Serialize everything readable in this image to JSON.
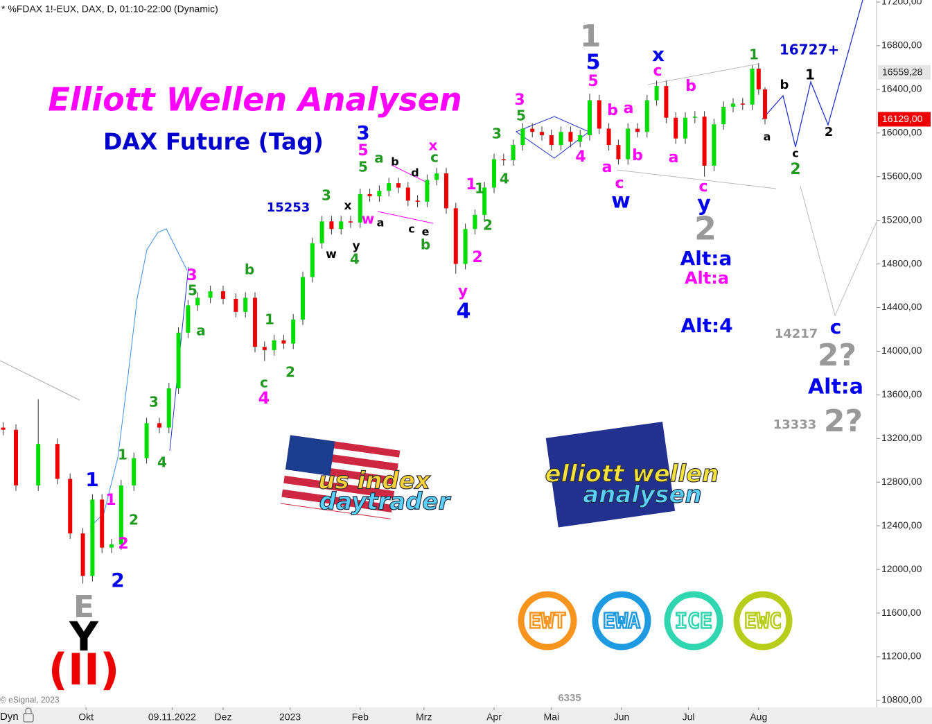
{
  "chart_data": {
    "type": "candlestick",
    "header": "* %FDAX 1!-EUX, DAX, D, 01:10-22:00 (Dynamic)",
    "title": "Elliott Wellen Analysen",
    "subtitle": "DAX Future (Tag)",
    "source": "© eSignal, 2023",
    "footer_number": "6335",
    "x_corner_label": "Dyn",
    "up_color": "#00dd00",
    "down_color": "#ee0000",
    "x": [
      1,
      5,
      12,
      18,
      22,
      26,
      29,
      32,
      35,
      38,
      42,
      46,
      50,
      53,
      56,
      59,
      62,
      66,
      70,
      74,
      77,
      80,
      83,
      86,
      89,
      92,
      95,
      98,
      101,
      104,
      107,
      110,
      113,
      116,
      119,
      122,
      125,
      128,
      131,
      134,
      137,
      140,
      143,
      146,
      149,
      152,
      155,
      158,
      161,
      164,
      167,
      170,
      173,
      176,
      179,
      182,
      185,
      188,
      191,
      194,
      197,
      200,
      203,
      206,
      209,
      212,
      215,
      218,
      221,
      224,
      227,
      230,
      233,
      236,
      238,
      240
    ],
    "open": [
      13300,
      13280,
      12770,
      13150,
      12830,
      12330,
      11940,
      12640,
      12200,
      12230,
      12770,
      13020,
      13340,
      13300,
      13660,
      14170,
      14420,
      14490,
      14550,
      14480,
      14360,
      14490,
      14040,
      14010,
      14100,
      14070,
      14290,
      14680,
      14990,
      15190,
      15120,
      15190,
      15180,
      15440,
      15420,
      15470,
      15540,
      15500,
      15380,
      15370,
      15570,
      15630,
      15310,
      14800,
      15120,
      15250,
      15500,
      15760,
      15750,
      15890,
      16040,
      16010,
      15980,
      15890,
      16010,
      15920,
      15980,
      16300,
      16040,
      15890,
      15760,
      16040,
      16010,
      16300,
      16430,
      16140,
      15950,
      16140,
      16150,
      15700,
      16080,
      16240,
      16270,
      16260,
      16590,
      16400
    ],
    "high": [
      13350,
      13330,
      13560,
      13200,
      12880,
      12380,
      12690,
      12690,
      12280,
      12820,
      13070,
      13390,
      13390,
      13710,
      14220,
      14470,
      14540,
      14600,
      14600,
      14530,
      14540,
      14540,
      14090,
      14150,
      14150,
      14340,
      14730,
      15040,
      15240,
      15240,
      15240,
      15240,
      15490,
      15490,
      15520,
      15590,
      15590,
      15550,
      15430,
      15620,
      15680,
      15680,
      15360,
      15170,
      15300,
      15550,
      15810,
      15810,
      15940,
      16090,
      16090,
      16060,
      16030,
      16060,
      16060,
      16030,
      16360,
      16350,
      16090,
      15940,
      16090,
      16090,
      16350,
      16480,
      16480,
      16190,
      16190,
      16200,
      16200,
      16130,
      16290,
      16320,
      16320,
      16620,
      16640,
      16420
    ],
    "low": [
      13230,
      12720,
      12720,
      12780,
      12280,
      11870,
      11890,
      12150,
      12150,
      12180,
      12720,
      12970,
      13250,
      13250,
      13610,
      14120,
      14370,
      14440,
      14430,
      14310,
      14310,
      13990,
      13910,
      13960,
      14020,
      14020,
      14240,
      14630,
      14940,
      15070,
      15070,
      15130,
      15130,
      15370,
      15370,
      15420,
      15450,
      15330,
      15320,
      15320,
      15520,
      15260,
      14710,
      14750,
      15070,
      15200,
      15450,
      15700,
      15700,
      15840,
      15960,
      15930,
      15840,
      15840,
      15870,
      15870,
      15930,
      15990,
      15840,
      15710,
      15710,
      15960,
      15960,
      16250,
      16090,
      15900,
      15900,
      16090,
      15600,
      15650,
      16030,
      16190,
      16210,
      16210,
      16350,
      16080
    ],
    "close": [
      13280,
      12770,
      13150,
      12830,
      12330,
      11940,
      12640,
      12200,
      12230,
      12770,
      13020,
      13340,
      13300,
      13660,
      14170,
      14420,
      14490,
      14550,
      14480,
      14360,
      14490,
      14040,
      14010,
      14100,
      14070,
      14290,
      14680,
      14990,
      15190,
      15120,
      15190,
      15180,
      15440,
      15420,
      15470,
      15540,
      15500,
      15380,
      15370,
      15570,
      15630,
      15310,
      14800,
      15120,
      15250,
      15500,
      15760,
      15750,
      15890,
      16040,
      16010,
      15980,
      15890,
      16010,
      15920,
      15980,
      16300,
      16040,
      15890,
      15760,
      16040,
      16010,
      16300,
      16430,
      16140,
      15950,
      16140,
      16150,
      15700,
      16080,
      16240,
      16270,
      16260,
      16590,
      16400,
      16129
    ],
    "xlim": [
      0,
      275
    ],
    "xticks": [
      {
        "value": 27,
        "label": "Okt"
      },
      {
        "value": 54,
        "label": "09.11.2022"
      },
      {
        "value": 70,
        "label": "Dez"
      },
      {
        "value": 91,
        "label": "2023"
      },
      {
        "value": 113,
        "label": "Feb"
      },
      {
        "value": 133,
        "label": "Mrz"
      },
      {
        "value": 155,
        "label": "Apr"
      },
      {
        "value": 173,
        "label": "Mai"
      },
      {
        "value": 195,
        "label": "Jun"
      },
      {
        "value": 216,
        "label": "Jul"
      },
      {
        "value": 238,
        "label": "Aug"
      }
    ],
    "ylim": [
      10736,
      17219
    ],
    "yticks": [
      {
        "value": 17200,
        "label": "17200,00"
      },
      {
        "value": 16800,
        "label": "16800,00"
      },
      {
        "value": 16400,
        "label": "16400,00"
      },
      {
        "value": 16000,
        "label": "16000,00"
      },
      {
        "value": 15600,
        "label": "15600,00"
      },
      {
        "value": 15200,
        "label": "15200,00"
      },
      {
        "value": 14800,
        "label": "14800,00"
      },
      {
        "value": 14400,
        "label": "14400,00"
      },
      {
        "value": 14000,
        "label": "14000,00"
      },
      {
        "value": 13600,
        "label": "13600,00"
      },
      {
        "value": 13200,
        "label": "13200,00"
      },
      {
        "value": 12800,
        "label": "12800,00"
      },
      {
        "value": 12400,
        "label": "12400,00"
      },
      {
        "value": 12000,
        "label": "12000,00"
      },
      {
        "value": 11600,
        "label": "11600,00"
      },
      {
        "value": 11200,
        "label": "11200,00"
      },
      {
        "value": 10800,
        "label": "10800,00"
      }
    ],
    "price_labels": [
      {
        "value": 16559.28,
        "label": "16559,28",
        "color": "#e6e6e6"
      },
      {
        "value": 16129,
        "label": "16129,00",
        "color": "#ee0000"
      }
    ],
    "annotations": [
      {
        "text": "E",
        "color": "#999999"
      },
      {
        "text": "Y",
        "color": "#000000"
      },
      {
        "text": "(II)",
        "color": "#ee0000"
      },
      {
        "text": "1",
        "color": "#0000ee"
      },
      {
        "text": "2",
        "color": "#0000ee"
      },
      {
        "text": "1",
        "color": "#ff00ff"
      },
      {
        "text": "2",
        "color": "#ff00ff"
      },
      {
        "text": "1",
        "color": "#1f9a1f"
      },
      {
        "text": "2",
        "color": "#1f9a1f"
      },
      {
        "text": "3",
        "color": "#1f9a1f"
      },
      {
        "text": "4",
        "color": "#1f9a1f"
      },
      {
        "text": "3",
        "color": "#ff00ff"
      },
      {
        "text": "5",
        "color": "#1f9a1f"
      },
      {
        "text": "a",
        "color": "#1f9a1f"
      },
      {
        "text": "b",
        "color": "#1f9a1f"
      },
      {
        "text": "1",
        "color": "#1f9a1f"
      },
      {
        "text": "2",
        "color": "#1f9a1f"
      },
      {
        "text": "c",
        "color": "#1f9a1f"
      },
      {
        "text": "4",
        "color": "#ff00ff"
      },
      {
        "text": "15253",
        "color": "#0000cc"
      },
      {
        "text": "3",
        "color": "#1f9a1f"
      },
      {
        "text": "x",
        "color": "#000000"
      },
      {
        "text": "w",
        "color": "#000000"
      },
      {
        "text": "y",
        "color": "#000000"
      },
      {
        "text": "4",
        "color": "#1f9a1f"
      },
      {
        "text": "3",
        "color": "#0000ee"
      },
      {
        "text": "5",
        "color": "#ff00ff"
      },
      {
        "text": "5",
        "color": "#1f9a1f"
      },
      {
        "text": "a",
        "color": "#1f9a1f"
      },
      {
        "text": "w",
        "color": "#ff00ff"
      },
      {
        "text": "a",
        "color": "#000000"
      },
      {
        "text": "b",
        "color": "#000000"
      },
      {
        "text": "d",
        "color": "#000000"
      },
      {
        "text": "c",
        "color": "#000000"
      },
      {
        "text": "e",
        "color": "#000000"
      },
      {
        "text": "b",
        "color": "#1f9a1f"
      },
      {
        "text": "x",
        "color": "#ff00ff"
      },
      {
        "text": "c",
        "color": "#1f9a1f"
      },
      {
        "text": "1",
        "color": "#ff00ff"
      },
      {
        "text": "1",
        "color": "#1f9a1f"
      },
      {
        "text": "2",
        "color": "#1f9a1f"
      },
      {
        "text": "2",
        "color": "#ff00ff"
      },
      {
        "text": "y",
        "color": "#ff00ff"
      },
      {
        "text": "4",
        "color": "#0000ee"
      },
      {
        "text": "3",
        "color": "#1f9a1f"
      },
      {
        "text": "4",
        "color": "#1f9a1f"
      },
      {
        "text": "3",
        "color": "#ff00ff"
      },
      {
        "text": "5",
        "color": "#1f9a1f"
      },
      {
        "text": "4",
        "color": "#ff00ff"
      },
      {
        "text": "1",
        "color": "#999999"
      },
      {
        "text": "5",
        "color": "#0000ee"
      },
      {
        "text": "5",
        "color": "#ff00ff"
      },
      {
        "text": "b",
        "color": "#ff00ff"
      },
      {
        "text": "a",
        "color": "#ff00ff"
      },
      {
        "text": "a",
        "color": "#ff00ff"
      },
      {
        "text": "b",
        "color": "#ff00ff"
      },
      {
        "text": "c",
        "color": "#ff00ff"
      },
      {
        "text": "w",
        "color": "#0000ee"
      },
      {
        "text": "x",
        "color": "#0000ee"
      },
      {
        "text": "c",
        "color": "#ff00ff"
      },
      {
        "text": "b",
        "color": "#ff00ff"
      },
      {
        "text": "a",
        "color": "#ff00ff"
      },
      {
        "text": "c",
        "color": "#ff00ff"
      },
      {
        "text": "y",
        "color": "#0000ee"
      },
      {
        "text": "2",
        "color": "#999999"
      },
      {
        "text": "Alt:a",
        "color": "#0000ee"
      },
      {
        "text": "Alt:a",
        "color": "#ff00ff"
      },
      {
        "text": "Alt:4",
        "color": "#0000ee"
      },
      {
        "text": "1",
        "color": "#1f9a1f"
      },
      {
        "text": "16727+",
        "color": "#0000cc"
      },
      {
        "text": "b",
        "color": "#000000"
      },
      {
        "text": "1",
        "color": "#000000"
      },
      {
        "text": "a",
        "color": "#000000"
      },
      {
        "text": "c",
        "color": "#000000"
      },
      {
        "text": "2",
        "color": "#1f9a1f"
      },
      {
        "text": "2",
        "color": "#000000"
      },
      {
        "text": "c",
        "color": "#0000ee"
      },
      {
        "text": "14217",
        "color": "#999999"
      },
      {
        "text": "2?",
        "color": "#999999"
      },
      {
        "text": "Alt:a",
        "color": "#0000ee"
      },
      {
        "text": "13333",
        "color": "#999999"
      },
      {
        "text": "2?",
        "color": "#999999"
      }
    ],
    "logos": [
      {
        "line1": "us index",
        "line2": "daytrader"
      },
      {
        "line1": "elliott wellen",
        "line2": "analysen"
      }
    ],
    "badges": [
      {
        "text": "EWT",
        "color": "#f7941d"
      },
      {
        "text": "EWA",
        "color": "#1e9be0"
      },
      {
        "text": "ICE",
        "color": "#2fd6b0"
      },
      {
        "text": "EWC",
        "color": "#b8cc1a"
      }
    ]
  }
}
